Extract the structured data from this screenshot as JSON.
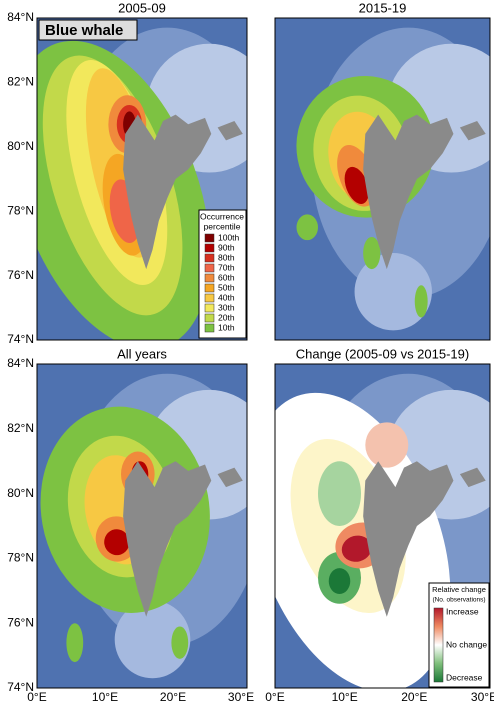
{
  "species_label": "Blue whale",
  "panels": [
    {
      "title": "2005-09"
    },
    {
      "title": "2015-19"
    },
    {
      "title": "All years"
    },
    {
      "title": "Change (2005-09 vs 2015-19)"
    }
  ],
  "lat_labels": [
    "84°N",
    "82°N",
    "80°N",
    "78°N",
    "76°N",
    "74°N"
  ],
  "lon_labels": [
    "0°E",
    "10°E",
    "20°E",
    "30°E"
  ],
  "occurrence_legend": {
    "title_lines": [
      "Occurrence",
      "percentile"
    ],
    "entries": [
      {
        "label": "100th",
        "color": "#7f0000"
      },
      {
        "label": "90th",
        "color": "#b30000"
      },
      {
        "label": "80th",
        "color": "#d7301f"
      },
      {
        "label": "70th",
        "color": "#ef6548"
      },
      {
        "label": "60th",
        "color": "#f08a3c"
      },
      {
        "label": "50th",
        "color": "#f5a623"
      },
      {
        "label": "40th",
        "color": "#f7c843"
      },
      {
        "label": "30th",
        "color": "#f2e85c"
      },
      {
        "label": "20th",
        "color": "#c2d94a"
      },
      {
        "label": "10th",
        "color": "#7dc242"
      }
    ]
  },
  "change_legend": {
    "title": "Relative change",
    "subtitle": "(No. observations)",
    "labels": [
      "Increase",
      "No change",
      "Decrease"
    ]
  }
}
